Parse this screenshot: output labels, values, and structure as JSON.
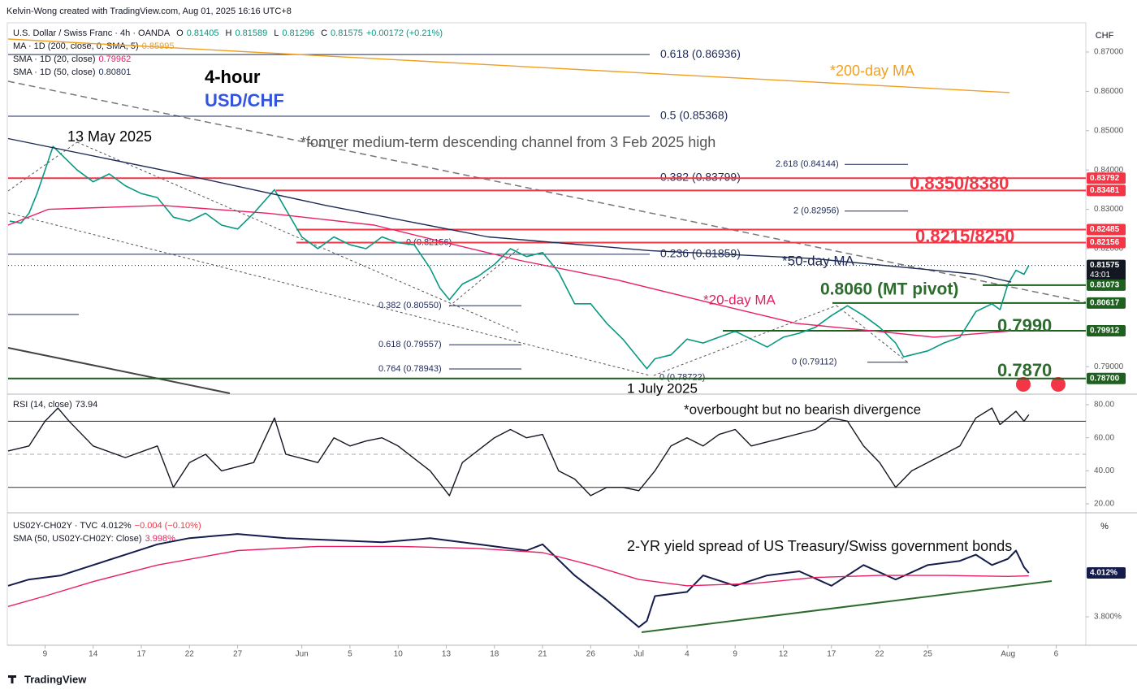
{
  "header": "Kelvin-Wong created with TradingView.com, Aug 01, 2025 16:16 UTC+8",
  "footer": "TradingView",
  "chart_data": [
    {
      "type": "line",
      "unit": "CHF",
      "legend": [
        [
          {
            "text": "U.S. Dollar / Swiss Franc · 4h · OANDA",
            "color": "#131722"
          },
          {
            "text": "O",
            "color": "#131722"
          },
          {
            "text": "0.81405",
            "color": "#089981"
          },
          {
            "text": "H",
            "color": "#131722"
          },
          {
            "text": "0.81589",
            "color": "#089981"
          },
          {
            "text": "L",
            "color": "#131722"
          },
          {
            "text": "0.81296",
            "color": "#089981"
          },
          {
            "text": "C",
            "color": "#131722"
          },
          {
            "text": "0.81575",
            "color": "#089981"
          },
          {
            "text": "+0.00172 (+0.21%)",
            "color": "#089981"
          }
        ],
        [
          {
            "text": "MA · 1D (200, close, 0, SMA, 5)",
            "color": "#131722"
          },
          {
            "text": "0.85995",
            "color": "#f0a020"
          }
        ],
        [
          {
            "text": "SMA · 1D (20, close)",
            "color": "#131722"
          },
          {
            "text": "0.79962",
            "color": "#e91e63"
          }
        ],
        [
          {
            "text": "SMA · 1D (50, close)",
            "color": "#131722"
          },
          {
            "text": "0.80801",
            "color": "#1e2a55"
          }
        ]
      ],
      "xlim": [
        -2.3,
        64.8
      ],
      "ylim": [
        0.78322,
        0.87744
      ],
      "yticks": [
        {
          "value": 0.87,
          "label": "0.87000"
        },
        {
          "value": 0.86,
          "label": "0.86000"
        },
        {
          "value": 0.85,
          "label": "0.85000"
        },
        {
          "value": 0.84,
          "label": "0.84000"
        },
        {
          "value": 0.83,
          "label": "0.83000"
        },
        {
          "value": 0.82,
          "label": "0.82000"
        },
        {
          "value": 0.79,
          "label": "0.79000"
        }
      ],
      "series": [
        {
          "color": "#089981",
          "x": [
            -2.2,
            -1.5,
            -1,
            -0.5,
            0,
            0.5,
            1,
            2,
            3,
            4,
            5,
            6,
            7,
            8,
            9,
            10,
            11,
            12,
            13,
            14.3,
            15,
            16,
            17,
            18,
            19,
            20,
            21,
            22,
            23,
            24,
            24.6,
            25.2,
            26,
            27,
            28,
            29,
            30,
            31,
            32,
            33,
            34,
            35,
            36,
            37,
            37.5,
            38,
            39,
            40,
            41,
            42,
            43,
            44,
            45,
            46,
            47,
            48,
            49,
            50,
            51,
            52,
            53,
            53.5,
            54,
            55,
            56,
            57,
            58,
            59,
            59.5,
            60,
            60.5,
            61,
            61.3
          ],
          "values": [
            0.827,
            0.8265,
            0.829,
            0.834,
            0.84,
            0.846,
            0.844,
            0.84,
            0.837,
            0.839,
            0.836,
            0.834,
            0.833,
            0.828,
            0.827,
            0.829,
            0.826,
            0.825,
            0.829,
            0.835,
            0.83,
            0.823,
            0.82,
            0.823,
            0.821,
            0.82,
            0.823,
            0.8215,
            0.821,
            0.815,
            0.81,
            0.807,
            0.811,
            0.813,
            0.816,
            0.82,
            0.818,
            0.819,
            0.814,
            0.806,
            0.806,
            0.801,
            0.797,
            0.792,
            0.7895,
            0.792,
            0.793,
            0.797,
            0.796,
            0.7975,
            0.799,
            0.797,
            0.795,
            0.7975,
            0.7985,
            0.8,
            0.803,
            0.8055,
            0.803,
            0.8,
            0.796,
            0.7925,
            0.793,
            0.794,
            0.796,
            0.7975,
            0.804,
            0.806,
            0.8045,
            0.811,
            0.8145,
            0.8135,
            0.81575
          ]
        },
        {
          "color": "#f0a020",
          "x": [
            -2.3,
            60.1
          ],
          "values": [
            0.8733,
            0.8597
          ]
        },
        {
          "color": "#e91e63",
          "x": [
            -2.3,
            0.2,
            7.3,
            13.9,
            20.5,
            24.5,
            29.6,
            35.7,
            41.7,
            46.8,
            51.8,
            55.4,
            60
          ],
          "values": [
            0.826,
            0.83,
            0.831,
            0.829,
            0.826,
            0.822,
            0.817,
            0.812,
            0.806,
            0.801,
            0.799,
            0.7975,
            0.799
          ]
        },
        {
          "color": "#1e2a55",
          "x": [
            -2.3,
            7.3,
            17.5,
            27.6,
            37.7,
            47.8,
            58,
            60.2
          ],
          "values": [
            0.848,
            0.84,
            0.831,
            0.823,
            0.8195,
            0.8175,
            0.8135,
            0.8115
          ]
        }
      ],
      "fibs": [
        {
          "label": "0.618 (0.86936)",
          "value": 0.86936
        },
        {
          "label": "0.5 (0.85368)",
          "value": 0.85368
        },
        {
          "label": "0.382 (0.83799)",
          "value": 0.83799
        },
        {
          "label": "0.236 (0.81859)",
          "value": 0.81859
        },
        {
          "label": "2.618 (0.84144)",
          "value": 0.84144
        },
        {
          "label": "2 (0.82956)",
          "value": 0.82956
        },
        {
          "label": "0 (0.79112)",
          "value": 0.79112
        },
        {
          "label": "0.382 (0.80550)",
          "value": 0.8055
        },
        {
          "label": "0.618 (0.79557)",
          "value": 0.79557
        },
        {
          "label": "0.764 (0.78943)",
          "value": 0.78943
        },
        {
          "label": "0 (0.78722)",
          "value": 0.78722
        },
        {
          "label": "0 (0.82156)",
          "value": 0.82156
        }
      ],
      "levels": [
        {
          "value": 0.83792,
          "label": "0.83792",
          "color": "#f23645"
        },
        {
          "value": 0.83481,
          "label": "0.83481",
          "color": "#f23645"
        },
        {
          "value": 0.82485,
          "label": "0.82485",
          "color": "#f23645"
        },
        {
          "value": 0.82156,
          "label": "0.82156",
          "color": "#f23645"
        },
        {
          "value": 0.81575,
          "label": "0.81575",
          "color": "#131722",
          "countdown": "43:01"
        },
        {
          "value": 0.81073,
          "label": "0.81073",
          "color": "#1f5f1f"
        },
        {
          "value": 0.80617,
          "label": "0.80617",
          "color": "#1f5f1f"
        },
        {
          "value": 0.79912,
          "label": "0.79912",
          "color": "#1f5f1f"
        },
        {
          "value": 0.787,
          "label": "0.78700",
          "color": "#1f5f1f"
        }
      ],
      "annotations": [
        "4-hour",
        "USD/CHF",
        "13 May 2025",
        "*fomrer medium-term descending channel from 3 Feb 2025 high",
        "*200-day MA",
        "0.8350/8380",
        "0.8215/8250",
        "*50-day MA",
        "0.8060 (MT pivot)",
        "*20-day MA",
        "0.7990",
        "0.7870",
        "1 July 2025"
      ]
    },
    {
      "type": "line",
      "legend": [
        [
          {
            "text": "RSI (14, close)",
            "color": "#131722"
          },
          {
            "text": "73.94",
            "color": "#131722"
          }
        ]
      ],
      "xlim": [
        -2.3,
        64.8
      ],
      "ylim": [
        15.1,
        85.9
      ],
      "yticks": [
        {
          "value": 80,
          "label": "80.00"
        },
        {
          "value": 60,
          "label": "60.00"
        },
        {
          "value": 40,
          "label": "40.00"
        },
        {
          "value": 20,
          "label": "20.00"
        }
      ],
      "levels": [
        70,
        50,
        30
      ],
      "series": [
        {
          "color": "#131722",
          "x": [
            -2.3,
            -1,
            0,
            0.8,
            1.5,
            3,
            5,
            7,
            8,
            9,
            10,
            11,
            13,
            14.3,
            15,
            17,
            18,
            19,
            20,
            21,
            22,
            24,
            25.2,
            26,
            28,
            29,
            30,
            31,
            32,
            33,
            34,
            35,
            36,
            37,
            38,
            39,
            40,
            41,
            42,
            43,
            44,
            46,
            48,
            49,
            50,
            51,
            52,
            53,
            54,
            55,
            56,
            57,
            58,
            59,
            59.5,
            60,
            60.5,
            61,
            61.3
          ],
          "values": [
            52,
            55,
            70,
            78,
            70,
            55,
            48,
            55,
            30,
            45,
            50,
            40,
            45,
            72,
            50,
            45,
            60,
            55,
            58,
            60,
            55,
            40,
            25,
            45,
            60,
            65,
            60,
            62,
            40,
            35,
            25,
            30,
            30,
            28,
            40,
            55,
            60,
            55,
            62,
            65,
            55,
            60,
            65,
            72,
            70,
            55,
            45,
            30,
            40,
            45,
            50,
            55,
            72,
            78,
            68,
            72,
            76,
            70,
            73.94
          ]
        }
      ],
      "annotations": [
        "*overbought but no bearish divergence"
      ]
    },
    {
      "type": "line",
      "unit": "%",
      "legend": [
        [
          {
            "text": "US02Y-CH02Y · TVC",
            "color": "#131722"
          },
          {
            "text": "4.012%",
            "color": "#131722"
          },
          {
            "text": "−0.004 (−0.10%)",
            "color": "#f23645"
          }
        ],
        [
          {
            "text": "SMA (50, US02Y-CH02Y: Close)",
            "color": "#131722"
          },
          {
            "text": "3.998%",
            "color": "#e91e63"
          }
        ]
      ],
      "xlim": [
        -2.3,
        64.8
      ],
      "ylim": [
        3.6665,
        4.2986
      ],
      "yticks": [
        {
          "value": 3.8,
          "label": "3.800%"
        }
      ],
      "levels": [
        {
          "value": 4.012,
          "label": "4.012%",
          "color": "#131c4a"
        }
      ],
      "xticks": [
        {
          "value": 0,
          "label": "9"
        },
        {
          "value": 3,
          "label": "14"
        },
        {
          "value": 6,
          "label": "17"
        },
        {
          "value": 9,
          "label": "22"
        },
        {
          "value": 12,
          "label": "27"
        },
        {
          "value": 16,
          "label": "Jun"
        },
        {
          "value": 19,
          "label": "5"
        },
        {
          "value": 22,
          "label": "10"
        },
        {
          "value": 25,
          "label": "13"
        },
        {
          "value": 28,
          "label": "18"
        },
        {
          "value": 31,
          "label": "21"
        },
        {
          "value": 34,
          "label": "26"
        },
        {
          "value": 37,
          "label": "Jul"
        },
        {
          "value": 40,
          "label": "4"
        },
        {
          "value": 43,
          "label": "9"
        },
        {
          "value": 46,
          "label": "12"
        },
        {
          "value": 49,
          "label": "17"
        },
        {
          "value": 52,
          "label": "22"
        },
        {
          "value": 55,
          "label": "25"
        },
        {
          "value": 60,
          "label": "Aug"
        },
        {
          "value": 63,
          "label": "6"
        }
      ],
      "series": [
        {
          "color": "#131c4a",
          "x": [
            -2.3,
            -1,
            1,
            3,
            5,
            7,
            9,
            12,
            15,
            18,
            21,
            24,
            27,
            30,
            31,
            33,
            35,
            37,
            37.5,
            38,
            40,
            41,
            43,
            45,
            47,
            49,
            51,
            53,
            55,
            57,
            58,
            59,
            60,
            60.5,
            61,
            61.3
          ],
          "values": [
            3.95,
            3.98,
            4.0,
            4.05,
            4.1,
            4.15,
            4.18,
            4.2,
            4.18,
            4.17,
            4.16,
            4.18,
            4.15,
            4.12,
            4.15,
            4.0,
            3.88,
            3.75,
            3.78,
            3.9,
            3.92,
            4.0,
            3.95,
            4.0,
            4.02,
            3.95,
            4.05,
            3.98,
            4.05,
            4.07,
            4.1,
            4.05,
            4.08,
            4.12,
            4.04,
            4.012
          ]
        },
        {
          "color": "#e91e63",
          "x": [
            -2.3,
            0,
            3,
            7,
            12,
            17,
            22,
            27,
            31,
            34,
            37,
            40,
            44,
            48,
            52,
            56,
            60,
            61.3
          ],
          "values": [
            3.85,
            3.9,
            3.97,
            4.05,
            4.12,
            4.14,
            4.14,
            4.13,
            4.11,
            4.05,
            3.98,
            3.95,
            3.96,
            3.99,
            4.0,
            4.0,
            3.995,
            3.998
          ]
        }
      ],
      "annotations": [
        "2-YR yield spread of US Treasury/Swiss government bonds"
      ]
    }
  ]
}
